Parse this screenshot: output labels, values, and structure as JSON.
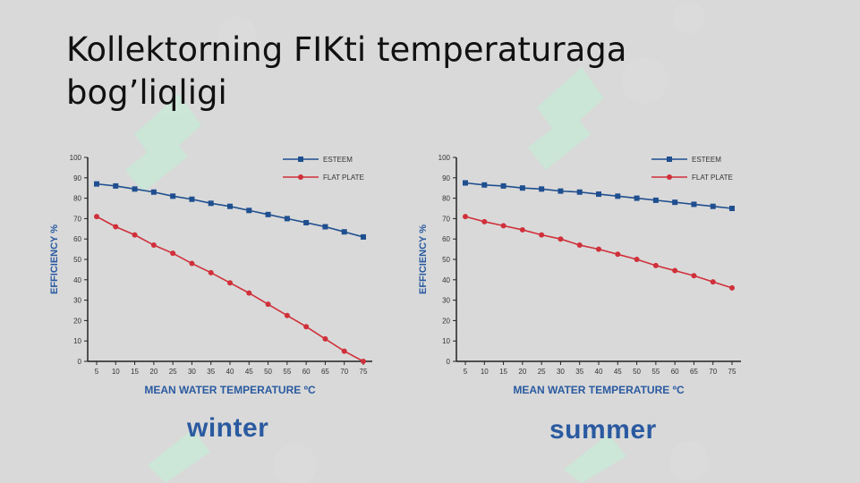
{
  "slide": {
    "title_line1": "Kollektorning FIKti temperaturaga",
    "title_line2": "bog’liqligi"
  },
  "colors": {
    "esteem": "#1f4f8f",
    "flat_plate": "#d0303a",
    "axis_label": "#2a5aa0",
    "tick_text": "#333333",
    "watermark": "#c9e8d6"
  },
  "chart_data": [
    {
      "type": "line",
      "caption": "winter",
      "xlabel": "MEAN WATER TEMPERATURE ºC",
      "ylabel": "EFFICIENCY %",
      "x": [
        5,
        10,
        15,
        20,
        25,
        30,
        35,
        40,
        45,
        50,
        55,
        60,
        65,
        70,
        75
      ],
      "xlim": [
        5,
        75
      ],
      "ylim": [
        0,
        100
      ],
      "yticks": [
        0,
        10,
        20,
        30,
        40,
        50,
        60,
        70,
        80,
        90,
        100
      ],
      "grid": false,
      "legend": "top-right",
      "series": [
        {
          "name": "ESTEEM",
          "values": [
            87,
            86,
            84.5,
            83,
            81,
            79.5,
            77.5,
            76,
            74,
            72,
            70,
            68,
            66,
            63.5,
            61
          ]
        },
        {
          "name": "FLAT PLATE",
          "values": [
            71,
            66,
            62,
            57,
            53,
            48,
            43.5,
            38.5,
            33.5,
            28,
            22.5,
            17,
            11,
            5,
            0
          ]
        }
      ]
    },
    {
      "type": "line",
      "caption": "summer",
      "xlabel": "MEAN WATER TEMPERATURE ºC",
      "ylabel": "EFFICIENCY %",
      "x": [
        5,
        10,
        15,
        20,
        25,
        30,
        35,
        40,
        45,
        50,
        55,
        60,
        65,
        70,
        75
      ],
      "xlim": [
        5,
        75
      ],
      "ylim": [
        0,
        100
      ],
      "yticks": [
        0,
        10,
        20,
        30,
        40,
        50,
        60,
        70,
        80,
        90,
        100
      ],
      "grid": false,
      "legend": "top-right",
      "series": [
        {
          "name": "ESTEEM",
          "values": [
            87.5,
            86.5,
            86,
            85,
            84.5,
            83.5,
            83,
            82,
            81,
            80,
            79,
            78,
            77,
            76,
            75
          ]
        },
        {
          "name": "FLAT PLATE",
          "values": [
            71,
            68.5,
            66.5,
            64.5,
            62,
            60,
            57,
            55,
            52.5,
            50,
            47,
            44.5,
            42,
            39,
            36
          ]
        }
      ]
    }
  ]
}
